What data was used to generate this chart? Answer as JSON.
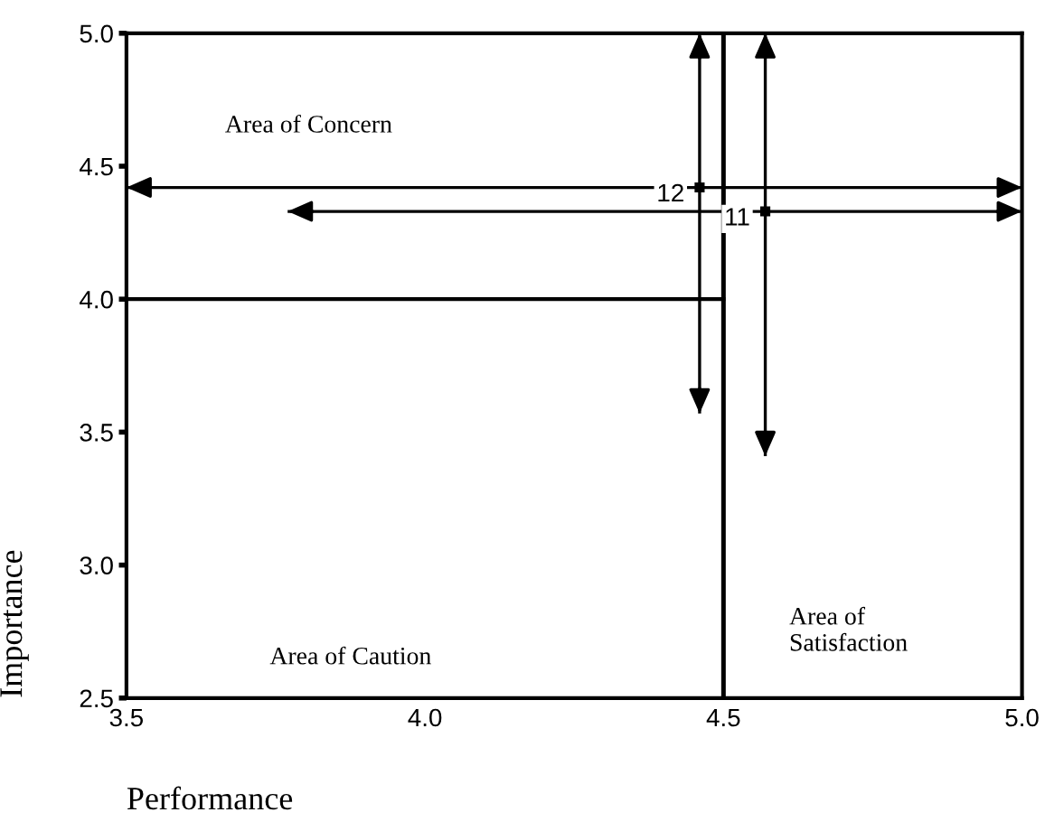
{
  "chart_data": {
    "type": "scatter",
    "xlabel": "Performance",
    "ylabel": "Importance",
    "xlim": [
      3.5,
      5.0
    ],
    "ylim": [
      2.5,
      5.0
    ],
    "xticks": [
      3.5,
      {
        "value": 4.0,
        "label": "4.0"
      },
      4.5,
      {
        "value": 5.0,
        "label": "5.0"
      }
    ],
    "yticks": [
      2.5,
      {
        "value": 3.0,
        "label": "3.0"
      },
      3.5,
      {
        "value": 4.0,
        "label": "4.0"
      },
      4.5,
      {
        "value": 5.0,
        "label": "5.0"
      }
    ],
    "grid": false,
    "legend": false,
    "series": [
      {
        "color": "#000000",
        "marker": "square",
        "x": [
          4.46,
          4.57
        ],
        "values": [
          4.42,
          4.33
        ],
        "errors": [
          [
            3.57,
            5.0
          ],
          [
            3.41,
            5.0
          ]
        ],
        "xerrors": [
          [
            3.5,
            5.0
          ],
          [
            3.77,
            5.0
          ]
        ]
      },
      {
        "type": "line",
        "color": "#000000",
        "marker": "none",
        "x": [
          3.5,
          4.5
        ],
        "values": [
          4.0,
          4.0
        ]
      }
    ],
    "ref_lines": [
      {
        "axis": "x",
        "value": 4.5,
        "color": "#000000"
      }
    ],
    "annotations": [
      {
        "text": "12",
        "x": 4.46,
        "y": 4.42
      },
      {
        "text": "11",
        "x": 4.57,
        "y": 4.33
      },
      "Area of Concern",
      "Area of Caution",
      "Area of\nSatisfaction"
    ]
  }
}
